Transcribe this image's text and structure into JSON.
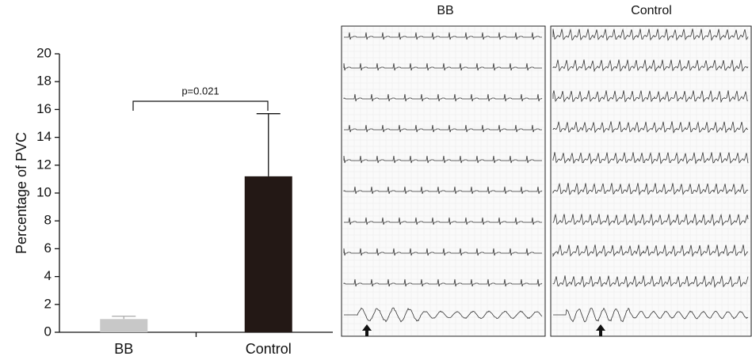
{
  "chart_data": {
    "type": "bar",
    "y_label": "Percentage of PVC",
    "categories": [
      "BB",
      "Control"
    ],
    "values": [
      0.95,
      11.2
    ],
    "errors": [
      0.2,
      4.5
    ],
    "colors": [
      "#c8c8c8",
      "#231815"
    ],
    "ylim": [
      0,
      20
    ],
    "yticks": [
      0,
      2,
      4,
      6,
      8,
      10,
      12,
      14,
      16,
      18,
      20
    ],
    "annotation": "p=0.021"
  },
  "ecg_panels": [
    {
      "title": "BB"
    },
    {
      "title": "Control"
    }
  ]
}
